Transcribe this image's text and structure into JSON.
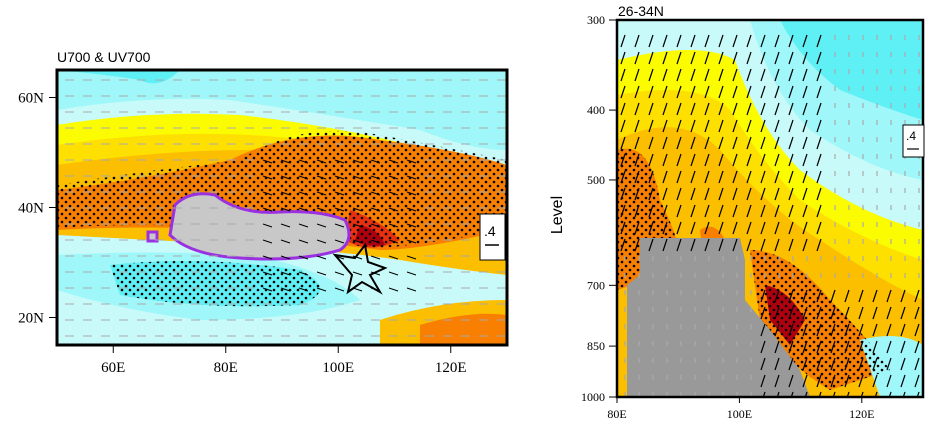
{
  "left_panel": {
    "title": "U700 & UV700",
    "x_ticks": [
      {
        "value": 60,
        "label": "60E"
      },
      {
        "value": 80,
        "label": "80E"
      },
      {
        "value": 100,
        "label": "100E"
      },
      {
        "value": 120,
        "label": "120E"
      }
    ],
    "y_ticks": [
      {
        "value": 60,
        "label": "60N"
      },
      {
        "value": 40,
        "label": "40N"
      },
      {
        "value": 20,
        "label": "20N"
      }
    ],
    "x_range": [
      50,
      130
    ],
    "y_range": [
      15,
      65
    ],
    "ref_vector_label": ".4"
  },
  "right_panel": {
    "title": "26-34N",
    "y_axis_label": "Level",
    "x_ticks": [
      {
        "value": 80,
        "label": "80E"
      },
      {
        "value": 100,
        "label": "100E"
      },
      {
        "value": 120,
        "label": "120E"
      }
    ],
    "y_ticks": [
      {
        "value": 300,
        "label": "300"
      },
      {
        "value": 400,
        "label": "400"
      },
      {
        "value": 500,
        "label": "500"
      },
      {
        "value": 700,
        "label": "700"
      },
      {
        "value": 850,
        "label": "850"
      },
      {
        "value": 1000,
        "label": "1000"
      }
    ],
    "x_range": [
      80,
      130
    ],
    "y_range": [
      300,
      1000
    ],
    "ref_vector_label": ".4"
  },
  "colors": {
    "cyan": "#5ff0f5",
    "lightcyan": "#9ff7f9",
    "palecyan": "#c8fafa",
    "yellow": "#fcfc00",
    "gold": "#fde000",
    "orange1": "#fbbf00",
    "orange2": "#f87f00",
    "red": "#e83010",
    "darkred": "#b00010",
    "terrain": "#c8c8c8",
    "terrain_dark": "#999999",
    "tp_outline": "#9a30e0"
  }
}
